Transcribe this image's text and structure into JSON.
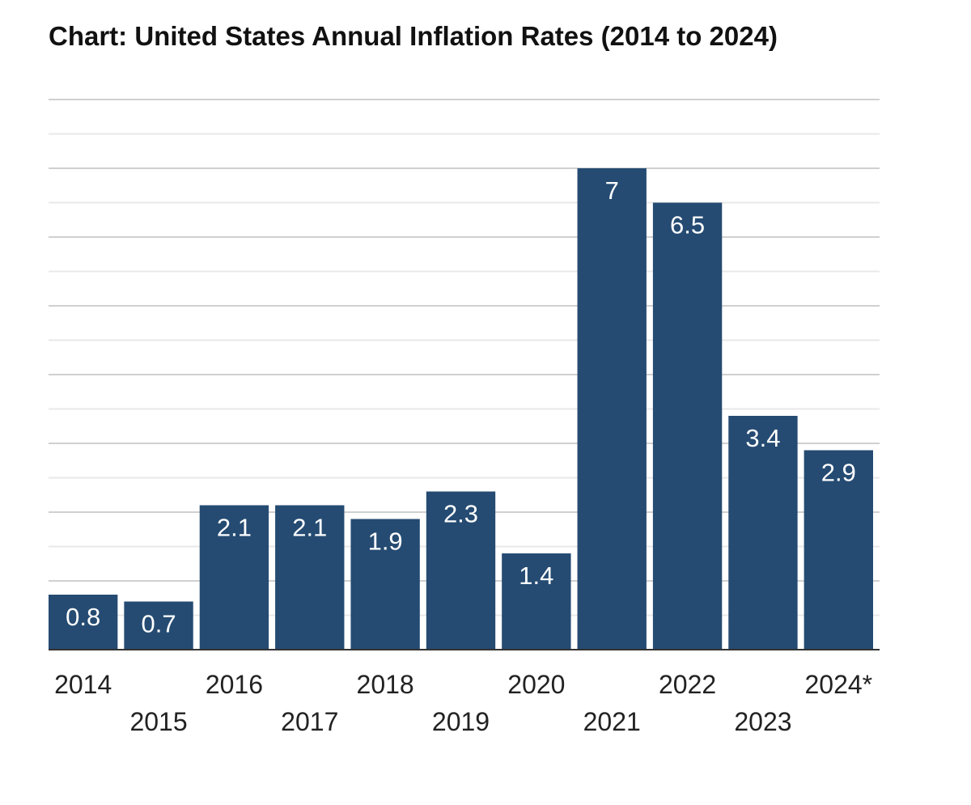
{
  "chart_data": {
    "type": "bar",
    "title": "Chart: United States Annual Inflation Rates (2014 to 2024)",
    "categories": [
      "2014",
      "2015",
      "2016",
      "2017",
      "2018",
      "2019",
      "2020",
      "2021",
      "2022",
      "2023",
      "2024*"
    ],
    "values": [
      0.8,
      0.7,
      2.1,
      2.1,
      1.9,
      2.3,
      1.4,
      7,
      6.5,
      3.4,
      2.9
    ],
    "value_labels": [
      "0.8",
      "0.7",
      "2.1",
      "2.1",
      "1.9",
      "2.3",
      "1.4",
      "7",
      "6.5",
      "3.4",
      "2.9"
    ],
    "xlabel": "",
    "ylabel": "",
    "ylim": [
      0,
      8
    ],
    "grid": true,
    "legend": "none",
    "colors": {
      "bar": "#254b72",
      "grid": "#d0d0d0",
      "axis": "#333333"
    }
  }
}
